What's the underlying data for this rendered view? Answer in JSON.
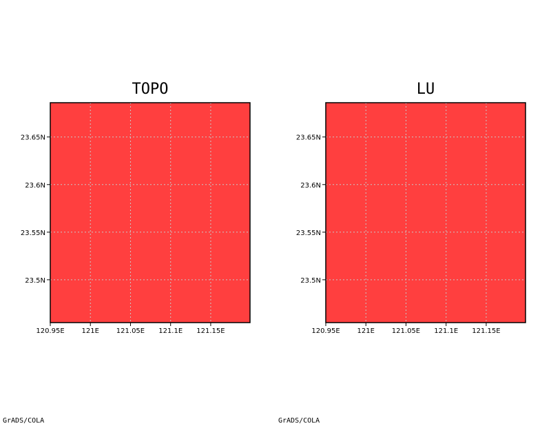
{
  "panels": [
    {
      "title": "TOPO",
      "fill_color": "#ff3f3f",
      "credit": "GrADS/COLA",
      "x_ticks": [
        "120.95E",
        "121E",
        "121.05E",
        "121.1E",
        "121.15E"
      ],
      "y_ticks": [
        "23.65N",
        "23.6N",
        "23.55N",
        "23.5N"
      ]
    },
    {
      "title": "LU",
      "fill_color": "#ff3f3f",
      "credit": "GrADS/COLA",
      "x_ticks": [
        "120.95E",
        "121E",
        "121.05E",
        "121.1E",
        "121.15E"
      ],
      "y_ticks": [
        "23.65N",
        "23.6N",
        "23.55N",
        "23.5N"
      ]
    }
  ],
  "map": {
    "lon_range": [
      120.95,
      121.199
    ],
    "lat_range": [
      23.455,
      23.686
    ],
    "x_tick_values": [
      120.95,
      121.0,
      121.05,
      121.1,
      121.15
    ],
    "y_tick_values": [
      23.65,
      23.6,
      23.55,
      23.5
    ],
    "grid_color": "#c8c8c8",
    "frame_color": "#000000"
  }
}
